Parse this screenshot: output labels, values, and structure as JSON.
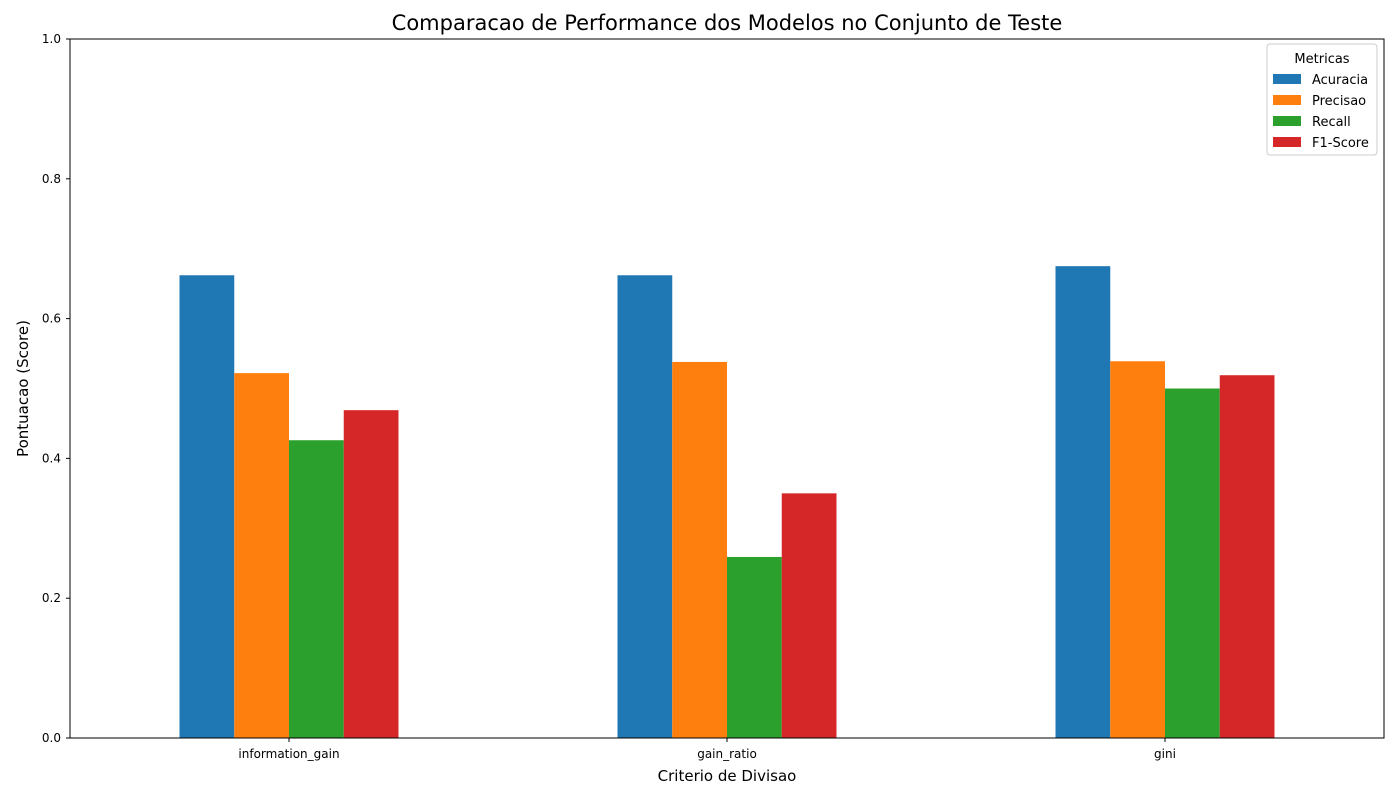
{
  "chart_data": {
    "type": "bar",
    "title": "Comparacao de Performance dos Modelos no Conjunto de Teste",
    "xlabel": "Criterio de Divisao",
    "ylabel": "Pontuacao (Score)",
    "categories": [
      "information_gain",
      "gain_ratio",
      "gini"
    ],
    "series": [
      {
        "name": "Acuracia",
        "color": "#1f77b4",
        "values": [
          0.662,
          0.662,
          0.675
        ]
      },
      {
        "name": "Precisao",
        "color": "#ff7f0e",
        "values": [
          0.522,
          0.538,
          0.539
        ]
      },
      {
        "name": "Recall",
        "color": "#2ca02c",
        "values": [
          0.426,
          0.259,
          0.5
        ]
      },
      {
        "name": "F1-Score",
        "color": "#d62728",
        "values": [
          0.469,
          0.35,
          0.519
        ]
      }
    ],
    "ylim": [
      0,
      1.0
    ],
    "yticks": [
      "0.0",
      "0.2",
      "0.4",
      "0.6",
      "0.8",
      "1.0"
    ],
    "grid": false,
    "legend": {
      "title": "Metricas",
      "position": "top-right"
    }
  }
}
